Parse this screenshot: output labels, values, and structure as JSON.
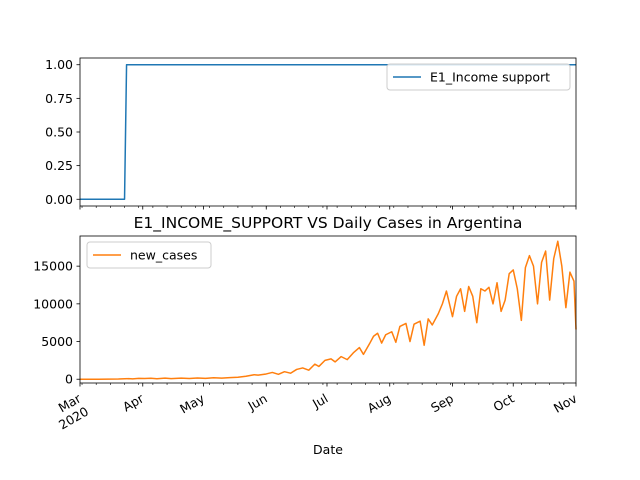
{
  "chart_data": [
    {
      "type": "line",
      "title": "",
      "xlabel": "",
      "ylabel": "",
      "x_range": [
        "2020-03-01",
        "2020-11-01"
      ],
      "ylim": [
        -0.05,
        1.05
      ],
      "y_ticks": [
        "0.00",
        "0.25",
        "0.50",
        "0.75",
        "1.00"
      ],
      "legend_position": "top-right",
      "grid": false,
      "series": [
        {
          "name": "E1_Income support",
          "color": "#1f77b4",
          "points": [
            [
              "2020-03-01",
              0
            ],
            [
              "2020-03-23",
              0
            ],
            [
              "2020-03-24",
              1
            ],
            [
              "2020-11-01",
              1
            ]
          ]
        }
      ]
    },
    {
      "type": "line",
      "title": "E1_INCOME_SUPPORT VS Daily Cases in Argentina",
      "xlabel": "Date",
      "ylabel": "",
      "x_range": [
        "2020-03-01",
        "2020-11-01"
      ],
      "ylim": [
        -500,
        19000
      ],
      "y_ticks": [
        "0",
        "5000",
        "10000",
        "15000"
      ],
      "x_tick_labels": [
        {
          "date": "2020-03-01",
          "label": "Mar",
          "sub": "2020"
        },
        {
          "date": "2020-04-01",
          "label": "Apr",
          "sub": ""
        },
        {
          "date": "2020-05-01",
          "label": "May",
          "sub": ""
        },
        {
          "date": "2020-06-01",
          "label": "Jun",
          "sub": ""
        },
        {
          "date": "2020-07-01",
          "label": "Jul",
          "sub": ""
        },
        {
          "date": "2020-08-01",
          "label": "Aug",
          "sub": ""
        },
        {
          "date": "2020-09-01",
          "label": "Sep",
          "sub": ""
        },
        {
          "date": "2020-10-01",
          "label": "Oct",
          "sub": ""
        },
        {
          "date": "2020-11-01",
          "label": "Nov",
          "sub": ""
        }
      ],
      "legend_position": "top-left",
      "grid": false,
      "series": [
        {
          "name": "new_cases",
          "color": "#ff7f0e",
          "points": [
            [
              "2020-03-01",
              0
            ],
            [
              "2020-03-10",
              5
            ],
            [
              "2020-03-20",
              30
            ],
            [
              "2020-03-25",
              80
            ],
            [
              "2020-03-27",
              50
            ],
            [
              "2020-03-30",
              120
            ],
            [
              "2020-04-02",
              90
            ],
            [
              "2020-04-05",
              130
            ],
            [
              "2020-04-08",
              60
            ],
            [
              "2020-04-12",
              140
            ],
            [
              "2020-04-15",
              80
            ],
            [
              "2020-04-20",
              150
            ],
            [
              "2020-04-24",
              100
            ],
            [
              "2020-04-28",
              160
            ],
            [
              "2020-05-02",
              110
            ],
            [
              "2020-05-06",
              200
            ],
            [
              "2020-05-10",
              140
            ],
            [
              "2020-05-14",
              220
            ],
            [
              "2020-05-18",
              260
            ],
            [
              "2020-05-22",
              400
            ],
            [
              "2020-05-26",
              600
            ],
            [
              "2020-05-28",
              550
            ],
            [
              "2020-06-01",
              700
            ],
            [
              "2020-06-04",
              900
            ],
            [
              "2020-06-07",
              650
            ],
            [
              "2020-06-10",
              1000
            ],
            [
              "2020-06-13",
              800
            ],
            [
              "2020-06-16",
              1300
            ],
            [
              "2020-06-19",
              1500
            ],
            [
              "2020-06-22",
              1200
            ],
            [
              "2020-06-25",
              2000
            ],
            [
              "2020-06-27",
              1700
            ],
            [
              "2020-06-30",
              2500
            ],
            [
              "2020-07-03",
              2700
            ],
            [
              "2020-07-05",
              2300
            ],
            [
              "2020-07-08",
              3000
            ],
            [
              "2020-07-11",
              2600
            ],
            [
              "2020-07-14",
              3500
            ],
            [
              "2020-07-17",
              4200
            ],
            [
              "2020-07-19",
              3300
            ],
            [
              "2020-07-22",
              4700
            ],
            [
              "2020-07-24",
              5700
            ],
            [
              "2020-07-26",
              6100
            ],
            [
              "2020-07-28",
              4800
            ],
            [
              "2020-07-30",
              5900
            ],
            [
              "2020-08-02",
              6300
            ],
            [
              "2020-08-04",
              4900
            ],
            [
              "2020-08-06",
              7000
            ],
            [
              "2020-08-09",
              7400
            ],
            [
              "2020-08-11",
              5000
            ],
            [
              "2020-08-13",
              7300
            ],
            [
              "2020-08-16",
              7700
            ],
            [
              "2020-08-18",
              4500
            ],
            [
              "2020-08-20",
              8000
            ],
            [
              "2020-08-22",
              7200
            ],
            [
              "2020-08-25",
              8700
            ],
            [
              "2020-08-27",
              10000
            ],
            [
              "2020-08-29",
              11700
            ],
            [
              "2020-09-01",
              8300
            ],
            [
              "2020-09-03",
              11000
            ],
            [
              "2020-09-05",
              12000
            ],
            [
              "2020-09-07",
              9000
            ],
            [
              "2020-09-09",
              12300
            ],
            [
              "2020-09-11",
              11000
            ],
            [
              "2020-09-13",
              7500
            ],
            [
              "2020-09-15",
              12000
            ],
            [
              "2020-09-17",
              11700
            ],
            [
              "2020-09-19",
              12200
            ],
            [
              "2020-09-21",
              10000
            ],
            [
              "2020-09-23",
              12800
            ],
            [
              "2020-09-25",
              9000
            ],
            [
              "2020-09-27",
              10500
            ],
            [
              "2020-09-29",
              14000
            ],
            [
              "2020-10-01",
              14500
            ],
            [
              "2020-10-03",
              12000
            ],
            [
              "2020-10-05",
              7800
            ],
            [
              "2020-10-07",
              14800
            ],
            [
              "2020-10-09",
              16400
            ],
            [
              "2020-10-11",
              15000
            ],
            [
              "2020-10-13",
              10000
            ],
            [
              "2020-10-15",
              15500
            ],
            [
              "2020-10-17",
              17000
            ],
            [
              "2020-10-19",
              10500
            ],
            [
              "2020-10-21",
              16000
            ],
            [
              "2020-10-23",
              18300
            ],
            [
              "2020-10-25",
              15000
            ],
            [
              "2020-10-27",
              9500
            ],
            [
              "2020-10-29",
              14200
            ],
            [
              "2020-10-31",
              13000
            ],
            [
              "2020-11-01",
              6600
            ]
          ]
        }
      ]
    }
  ]
}
